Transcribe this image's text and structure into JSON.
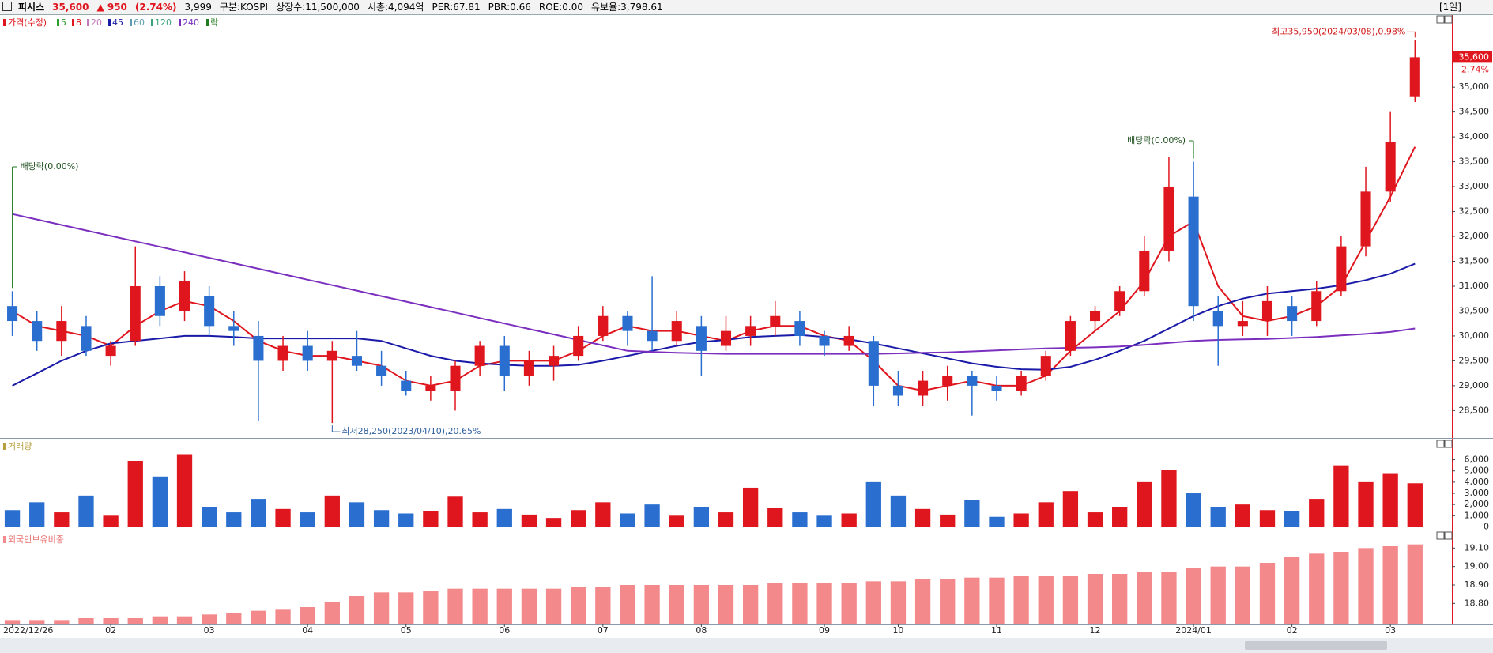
{
  "header": {
    "name": "피시스",
    "price": "35,600",
    "change": "▲ 950",
    "change_pct": "(2.74%)",
    "volume": "3,999",
    "info": [
      "구분:KOSPI",
      "상장수:11,500,000",
      "시총:4,094억",
      "PER:67.81",
      "PBR:0.66",
      "ROE:0.00",
      "유보율:3,798.61"
    ],
    "period": "[1일]"
  },
  "chart_data": [
    {
      "type": "candlestick",
      "legend_title": "가격(수정)",
      "legend": [
        {
          "name": "5",
          "color": "#2ca02c"
        },
        {
          "name": "8",
          "color": "#e0161e"
        },
        {
          "name": "20",
          "color": "#c07ab8"
        },
        {
          "name": "45",
          "color": "#1a1aa8"
        },
        {
          "name": "60",
          "color": "#5a9bb0"
        },
        {
          "name": "120",
          "color": "#3aa37a"
        },
        {
          "name": "240",
          "color": "#7b2fbf"
        },
        {
          "name": "락",
          "color": "#1f7a1f"
        }
      ],
      "categories": [
        "2022/12/26",
        null,
        null,
        null,
        "02",
        null,
        null,
        null,
        "03",
        null,
        null,
        null,
        "04",
        null,
        null,
        null,
        "05",
        null,
        null,
        null,
        "06",
        null,
        null,
        null,
        "07",
        null,
        null,
        null,
        "08",
        null,
        null,
        null,
        null,
        "09",
        null,
        null,
        "10",
        null,
        null,
        null,
        "11",
        null,
        null,
        null,
        "12",
        null,
        null,
        null,
        "2024/01",
        null,
        null,
        null,
        "02",
        null,
        null,
        null,
        "03",
        null
      ],
      "open": [
        30600,
        30300,
        29900,
        30200,
        29600,
        29900,
        31000,
        30500,
        30800,
        30200,
        30000,
        29500,
        29800,
        29500,
        29600,
        29400,
        29100,
        28900,
        28900,
        29400,
        29800,
        29200,
        29400,
        29600,
        30000,
        30400,
        30100,
        29900,
        30200,
        29800,
        30000,
        30200,
        30300,
        30000,
        29800,
        29900,
        29000,
        28800,
        29000,
        29200,
        29000,
        28900,
        29200,
        29700,
        30300,
        30500,
        30900,
        31700,
        32800,
        30500,
        30200,
        30300,
        30600,
        30300,
        30900,
        31800,
        32900,
        34800
      ],
      "high": [
        30900,
        30500,
        30600,
        30400,
        29900,
        31800,
        31200,
        31300,
        31000,
        30500,
        30300,
        30000,
        30100,
        29900,
        30100,
        29700,
        29300,
        29200,
        29500,
        29900,
        30000,
        29700,
        29800,
        30200,
        30600,
        30500,
        31200,
        30500,
        30400,
        30400,
        30400,
        30700,
        30500,
        30100,
        30200,
        30000,
        29300,
        29300,
        29400,
        29300,
        29200,
        29300,
        29700,
        30400,
        30600,
        31000,
        32000,
        33600,
        33500,
        30800,
        30700,
        31000,
        30800,
        31100,
        32000,
        33400,
        34500,
        35950
      ],
      "low": [
        30000,
        29700,
        29600,
        29600,
        29400,
        29800,
        30200,
        30300,
        30000,
        29800,
        28300,
        29300,
        29300,
        28250,
        29300,
        29000,
        28800,
        28700,
        28500,
        29200,
        28900,
        29000,
        29100,
        29500,
        29900,
        29800,
        29700,
        29800,
        29200,
        29700,
        29800,
        30000,
        29800,
        29600,
        29700,
        28600,
        28600,
        28600,
        28700,
        28400,
        28700,
        28800,
        29100,
        29600,
        30100,
        30400,
        30800,
        31500,
        30300,
        29400,
        30000,
        30000,
        30000,
        30200,
        30800,
        31600,
        32700,
        34700
      ],
      "close": [
        30300,
        29900,
        30300,
        29700,
        29800,
        31000,
        30400,
        31100,
        30200,
        30100,
        29500,
        29800,
        29500,
        29700,
        29400,
        29200,
        28900,
        29000,
        29400,
        29800,
        29200,
        29500,
        29600,
        30000,
        30400,
        30100,
        29900,
        30300,
        29700,
        30100,
        30200,
        30400,
        30000,
        29800,
        30000,
        29000,
        28800,
        29100,
        29200,
        29000,
        28900,
        29200,
        29600,
        30300,
        30500,
        30900,
        31700,
        33000,
        30600,
        30200,
        30300,
        30700,
        30300,
        30900,
        31800,
        32900,
        33900,
        35600
      ],
      "up_color": "#e0161e",
      "down_color": "#2a6fd0",
      "moving_averages": [
        {
          "color": "#e0161e",
          "values": [
            30500,
            30200,
            30100,
            30000,
            29800,
            30200,
            30500,
            30700,
            30600,
            30300,
            29900,
            29700,
            29600,
            29600,
            29500,
            29400,
            29100,
            29000,
            29100,
            29400,
            29500,
            29500,
            29500,
            29700,
            30000,
            30200,
            30100,
            30100,
            30000,
            29900,
            30100,
            30200,
            30200,
            30000,
            29900,
            29500,
            29000,
            28900,
            29000,
            29100,
            29000,
            29000,
            29200,
            29700,
            30100,
            30500,
            31100,
            32000,
            32300,
            31000,
            30400,
            30300,
            30400,
            30600,
            31000,
            31900,
            32800,
            33800
          ]
        },
        {
          "color": "#1a1aa8",
          "values": [
            29000,
            29250,
            29500,
            29700,
            29850,
            29900,
            29950,
            30000,
            30000,
            29980,
            29950,
            29950,
            29950,
            29950,
            29950,
            29900,
            29750,
            29600,
            29500,
            29450,
            29420,
            29400,
            29400,
            29420,
            29500,
            29600,
            29700,
            29800,
            29880,
            29920,
            29980,
            30000,
            30020,
            29980,
            29930,
            29850,
            29750,
            29650,
            29550,
            29450,
            29380,
            29330,
            29320,
            29380,
            29520,
            29700,
            29900,
            30150,
            30400,
            30600,
            30750,
            30850,
            30900,
            30950,
            31020,
            31120,
            31250,
            31450
          ]
        },
        {
          "color": "#7b2fbf",
          "values": [
            32450,
            32340,
            32230,
            32120,
            32010,
            31900,
            31790,
            31680,
            31570,
            31460,
            31350,
            31240,
            31130,
            31020,
            30910,
            30800,
            30690,
            30580,
            30470,
            30360,
            30250,
            30140,
            30030,
            29920,
            29810,
            29700,
            29680,
            29660,
            29650,
            29640,
            29640,
            29640,
            29640,
            29640,
            29640,
            29640,
            29650,
            29660,
            29670,
            29690,
            29710,
            29730,
            29750,
            29760,
            29770,
            29790,
            29820,
            29860,
            29900,
            29920,
            29930,
            29940,
            29960,
            29980,
            30010,
            30040,
            30080,
            30150
          ]
        }
      ],
      "ylim": [
        27950,
        36400
      ],
      "yticks": [
        {
          "value": 28500,
          "label": "28,500"
        },
        {
          "value": 29000,
          "label": "29,000"
        },
        {
          "value": 29500,
          "label": "29,500"
        },
        {
          "value": 30000,
          "label": "30,000"
        },
        {
          "value": 30500,
          "label": "30,500"
        },
        {
          "value": 31000,
          "label": "31,000"
        },
        {
          "value": 31500,
          "label": "31,500"
        },
        {
          "value": 32000,
          "label": "32,000"
        },
        {
          "value": 32500,
          "label": "32,500"
        },
        {
          "value": 33000,
          "label": "33,000"
        },
        {
          "value": 33500,
          "label": "33,500"
        },
        {
          "value": 34000,
          "label": "34,000"
        },
        {
          "value": 34500,
          "label": "34,500"
        },
        {
          "value": 35000,
          "label": "35,000"
        }
      ],
      "annotations": {
        "high": "최고35,950(2024/03/08),0.98%",
        "low": "최저28,250(2023/04/10),20.65%",
        "dividends": [
          "배당락(0.00%)",
          "배당락(0.00%)"
        ]
      },
      "last_price_label": "35,600",
      "last_change_label": "2.74%"
    },
    {
      "type": "bar",
      "title": "거래량",
      "values": [
        1500,
        2200,
        1300,
        2800,
        1000,
        5900,
        4500,
        6500,
        1800,
        1300,
        2500,
        1600,
        1300,
        2800,
        2200,
        1500,
        1200,
        1400,
        2700,
        1300,
        1600,
        1100,
        800,
        1500,
        2200,
        1200,
        2000,
        1000,
        1800,
        1300,
        3500,
        1700,
        1300,
        1000,
        1200,
        4000,
        2800,
        1600,
        1100,
        2400,
        900,
        1200,
        2200,
        3200,
        1300,
        1800,
        4000,
        5100,
        3000,
        1800,
        2000,
        1500,
        1400,
        2500,
        5500,
        4000,
        4800,
        3900
      ],
      "ylim": [
        -250,
        7100
      ],
      "yticks": [
        0,
        {
          "value": 1000,
          "label": "1,000"
        },
        {
          "value": 2000,
          "label": "2,000"
        },
        {
          "value": 3000,
          "label": "3,000"
        },
        {
          "value": 4000,
          "label": "4,000"
        },
        {
          "value": 5000,
          "label": "5,000"
        },
        {
          "value": 6000,
          "label": "6,000"
        }
      ]
    },
    {
      "type": "bar",
      "title": "외국인보유비중",
      "color": "#f4898b",
      "values": [
        18.71,
        18.71,
        18.71,
        18.72,
        18.72,
        18.72,
        18.73,
        18.73,
        18.74,
        18.75,
        18.76,
        18.77,
        18.78,
        18.81,
        18.84,
        18.86,
        18.86,
        18.87,
        18.88,
        18.88,
        18.88,
        18.88,
        18.88,
        18.89,
        18.89,
        18.9,
        18.9,
        18.9,
        18.9,
        18.9,
        18.9,
        18.91,
        18.91,
        18.91,
        18.91,
        18.92,
        18.92,
        18.93,
        18.93,
        18.94,
        18.94,
        18.95,
        18.95,
        18.95,
        18.96,
        18.96,
        18.97,
        18.97,
        18.99,
        19.0,
        19.0,
        19.02,
        19.05,
        19.07,
        19.08,
        19.1,
        19.11,
        19.12
      ],
      "ylim": [
        18.69,
        19.14
      ],
      "yticks": [
        {
          "value": 18.8,
          "label": "18.80"
        },
        {
          "value": 18.9,
          "label": "18.90"
        },
        {
          "value": 19.0,
          "label": "19.00"
        },
        {
          "value": 19.1,
          "label": "19.10"
        }
      ]
    }
  ]
}
